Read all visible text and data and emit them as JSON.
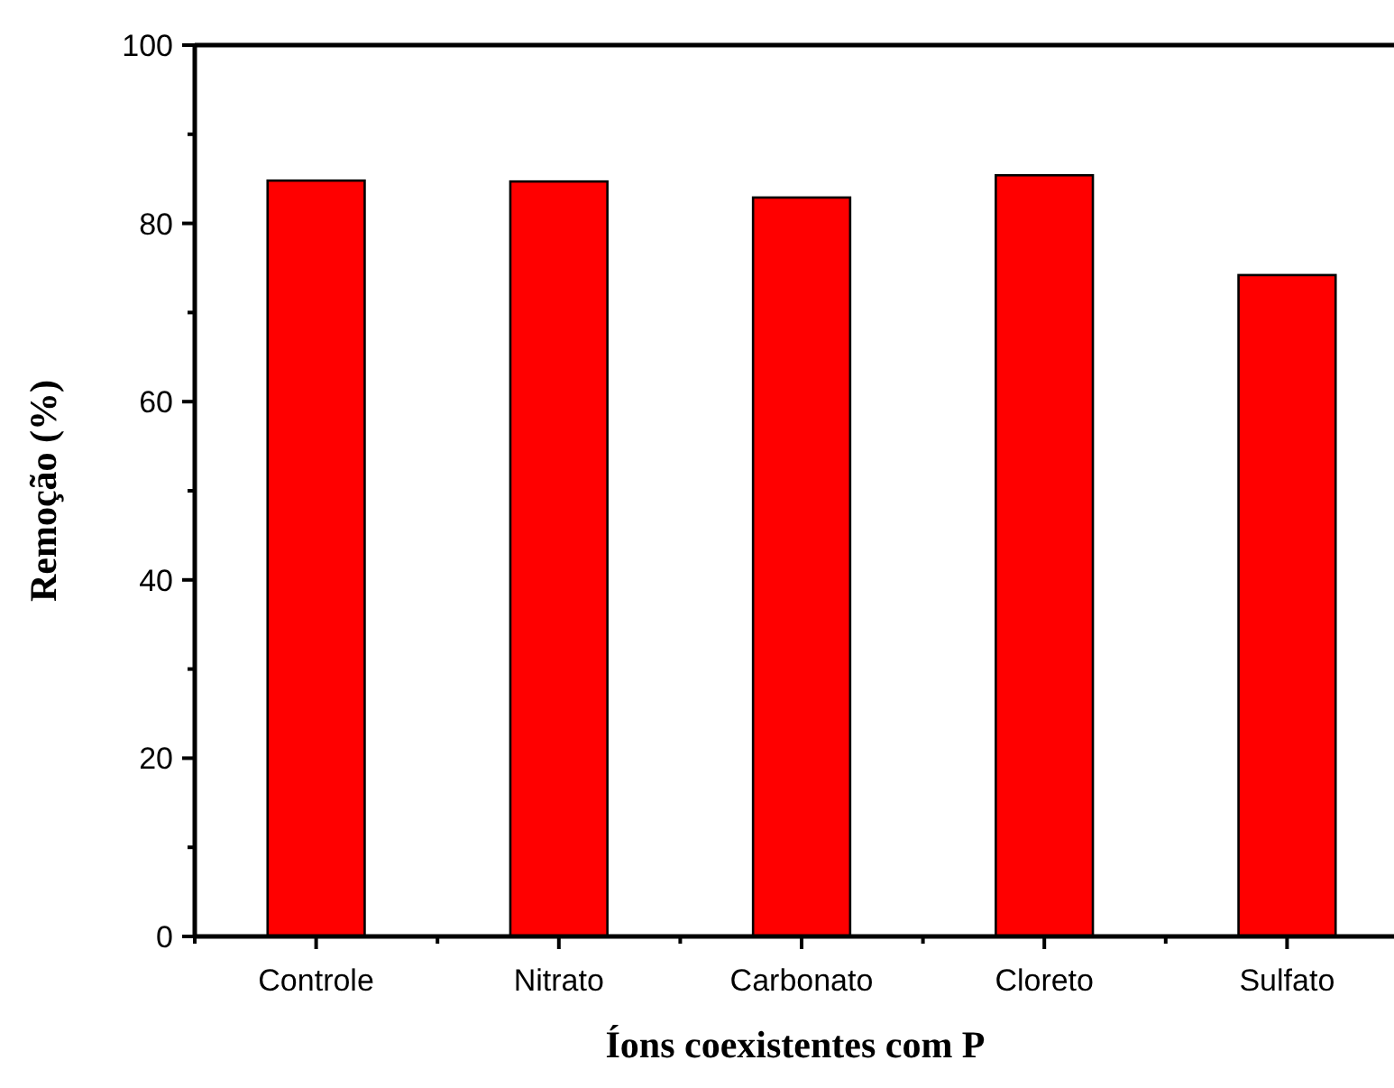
{
  "chart_data": {
    "type": "bar",
    "xlabel": "Íons coexistentes com P",
    "ylabel": "Remoção (%)",
    "categories": [
      "Controle",
      "Nitrato",
      "Carbonato",
      "Cloreto",
      "Sulfato"
    ],
    "values": [
      84.8,
      84.7,
      82.9,
      85.4,
      74.2
    ],
    "color": "#ff0000",
    "ylim": [
      0,
      100
    ],
    "yticks": [
      0,
      {
        "value": 10,
        "label": null
      },
      20,
      {
        "value": 30,
        "label": null
      },
      40,
      {
        "value": 50,
        "label": null
      },
      60,
      {
        "value": 70,
        "label": null
      },
      80,
      {
        "value": 90,
        "label": null
      },
      100
    ]
  }
}
